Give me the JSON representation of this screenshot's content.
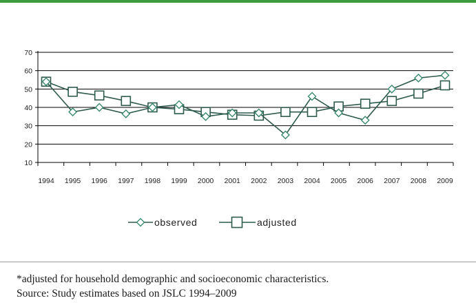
{
  "colors": {
    "top_band": "#3a9b3f",
    "series_line": "#2e5a4e",
    "observed_marker": "#3a8a6e",
    "adjusted_marker": "#2e5a4e",
    "gridline": "#000000"
  },
  "chart_data": {
    "type": "line",
    "x": [
      "1994",
      "1995",
      "1996",
      "1997",
      "1998",
      "1999",
      "2000",
      "2001",
      "2002",
      "2003",
      "2004",
      "2005",
      "2006",
      "2007",
      "2008",
      "2009"
    ],
    "ylim": [
      10,
      70
    ],
    "yticks": [
      10,
      20,
      30,
      40,
      50,
      60,
      70
    ],
    "grid": true,
    "legend_position": "bottom-center",
    "series": [
      {
        "name": "observed",
        "marker": "diamond",
        "values": [
          54,
          37.5,
          40,
          36.5,
          40,
          41.5,
          35,
          37,
          37,
          25,
          46,
          37,
          33,
          50,
          56,
          57.5
        ]
      },
      {
        "name": "adjusted",
        "marker": "square",
        "values": [
          54,
          48.5,
          46.5,
          43.5,
          40,
          39,
          37.5,
          36,
          35.5,
          37.5,
          37.5,
          40.5,
          42,
          43.5,
          47.5,
          52
        ]
      }
    ]
  },
  "footnotes": {
    "line1": "*adjusted for household demographic and socioeconomic characteristics.",
    "line2": "Source: Study estimates based on JSLC 1994–2009"
  }
}
